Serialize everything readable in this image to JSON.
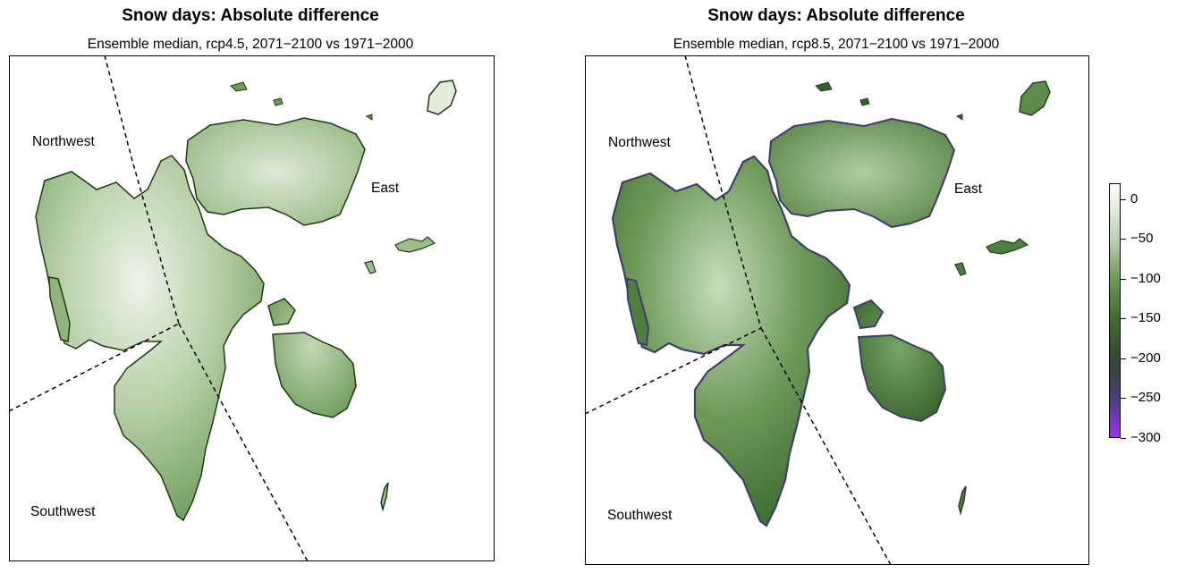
{
  "panels": [
    {
      "title": "Snow days: Absolute difference",
      "subtitle": "Ensemble median, rcp4.5, 2071−2100 vs 1971−2000",
      "regions": [
        "Northwest",
        "East",
        "Southwest"
      ],
      "scenario": "rcp4.5",
      "typical_difference": -60
    },
    {
      "title": "Snow days: Absolute difference",
      "subtitle": "Ensemble median, rcp8.5, 2071−2100 vs 1971−2000",
      "regions": [
        "Northwest",
        "East",
        "Southwest"
      ],
      "scenario": "rcp8.5",
      "typical_difference": -120
    }
  ],
  "colorbar": {
    "ticks": [
      "0",
      "−50",
      "−100",
      "−150",
      "−200",
      "−250",
      "−300"
    ],
    "values": [
      0,
      -50,
      -100,
      -150,
      -200,
      -250,
      -300
    ],
    "range": [
      -300,
      20
    ],
    "colors": [
      "#ffffff",
      "#b9d2ad",
      "#6b9e57",
      "#3d6f2a",
      "#2f4a2c",
      "#4a3d7a",
      "#9b30ff"
    ]
  },
  "colors": {
    "land_rcp45_light": "#e4eddd",
    "land_rcp45_mid": "#9cbf89",
    "land_rcp45_dark": "#5f8f4a",
    "land_rcp85_light": "#b6cfa8",
    "land_rcp85_mid": "#5e8d49",
    "land_rcp85_dark": "#34612a",
    "coast_rcp85": "#3d3f66",
    "outline": "#1e3a12",
    "boundary": "#000000"
  }
}
